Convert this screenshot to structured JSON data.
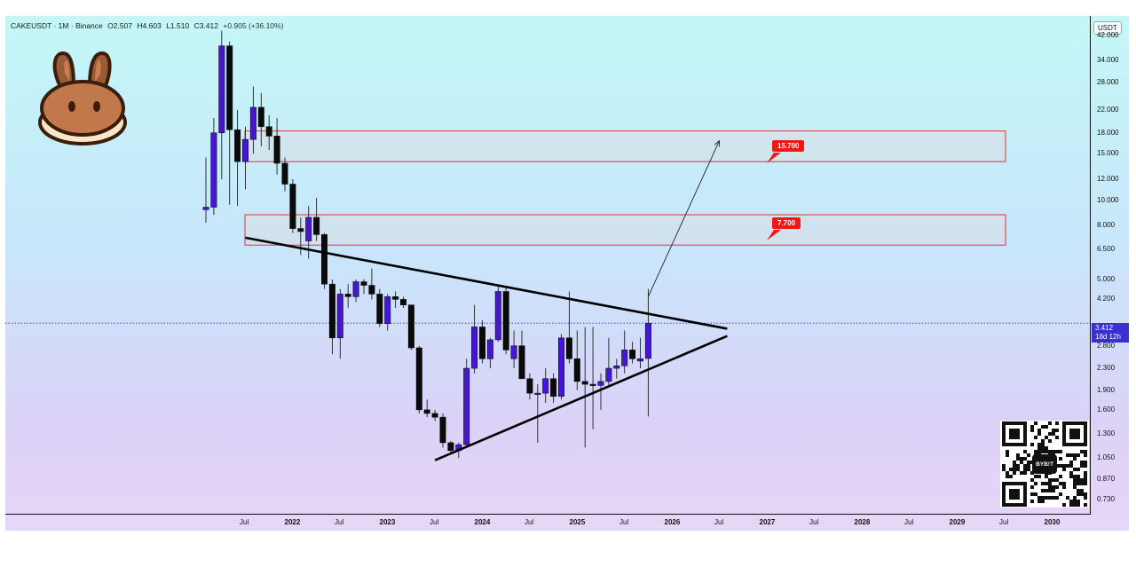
{
  "header": {
    "symbol": "CAKEUSDT · 1M · Binance",
    "open": "O2.507",
    "high": "H4.603",
    "low": "L1.510",
    "close": "C3.412",
    "change": "+0.905 (+36.10%)"
  },
  "unit": "USDT",
  "current_price": {
    "value": "3.412",
    "countdown": "18d 12h"
  },
  "callouts": {
    "upper": "15.700",
    "lower": "7.700"
  },
  "qr_label": "BYB!T",
  "colors": {
    "bull": "#4616d2",
    "bear": "#0a0a0a",
    "zone_border": "#e0313a",
    "zone_fill": "#d9dfe5",
    "callout": "#f41515",
    "price_tag": "#3a2fd2"
  },
  "chart_data": {
    "type": "candlestick",
    "y_scale": "log",
    "ylim": [
      0.65,
      50
    ],
    "y_ticks": [
      "42.000",
      "34.000",
      "28.000",
      "22.000",
      "18.000",
      "15.000",
      "12.000",
      "10.000",
      "8.000",
      "6.500",
      "5.000",
      "4.200",
      "2.800",
      "2.300",
      "1.900",
      "1.600",
      "1.300",
      "1.050",
      "0.870",
      "0.730"
    ],
    "x_ticks": [
      "Jul",
      "2022",
      "Jul",
      "2023",
      "Jul",
      "2024",
      "Jul",
      "2025",
      "Jul",
      "2026",
      "Jul",
      "2027",
      "Jul",
      "2028",
      "Jul",
      "2029",
      "Jul",
      "2030"
    ],
    "candles": [
      {
        "date": "2021-02",
        "o": 9.2,
        "h": 14.5,
        "l": 8.2,
        "c": 9.4
      },
      {
        "date": "2021-03",
        "o": 9.4,
        "h": 20.5,
        "l": 8.8,
        "c": 18.0
      },
      {
        "date": "2021-04",
        "o": 18.0,
        "h": 44.0,
        "l": 12.0,
        "c": 38.5
      },
      {
        "date": "2021-05",
        "o": 38.5,
        "h": 40.0,
        "l": 9.6,
        "c": 18.5
      },
      {
        "date": "2021-06",
        "o": 18.5,
        "h": 22.0,
        "l": 9.5,
        "c": 14.0
      },
      {
        "date": "2021-07",
        "o": 14.0,
        "h": 19.0,
        "l": 11.0,
        "c": 17.0
      },
      {
        "date": "2021-08",
        "o": 17.0,
        "h": 27.0,
        "l": 15.0,
        "c": 22.5
      },
      {
        "date": "2021-09",
        "o": 22.5,
        "h": 25.5,
        "l": 16.0,
        "c": 19.0
      },
      {
        "date": "2021-10",
        "o": 19.0,
        "h": 21.0,
        "l": 15.5,
        "c": 17.5
      },
      {
        "date": "2021-11",
        "o": 17.5,
        "h": 20.5,
        "l": 12.5,
        "c": 13.8
      },
      {
        "date": "2021-12",
        "o": 13.8,
        "h": 14.5,
        "l": 10.8,
        "c": 11.5
      },
      {
        "date": "2021-12b",
        "o": 11.5,
        "h": 12.0,
        "l": 7.5,
        "c": 7.8
      },
      {
        "date": "2022-01",
        "o": 7.8,
        "h": 8.6,
        "l": 6.2,
        "c": 7.6
      },
      {
        "date": "2022-02",
        "o": 7.0,
        "h": 9.5,
        "l": 6.0,
        "c": 8.6
      },
      {
        "date": "2022-03",
        "o": 8.6,
        "h": 10.2,
        "l": 7.0,
        "c": 7.4
      },
      {
        "date": "2022-04",
        "o": 7.4,
        "h": 7.5,
        "l": 4.6,
        "c": 4.8
      },
      {
        "date": "2022-05",
        "o": 4.8,
        "h": 5.0,
        "l": 2.6,
        "c": 3.0
      },
      {
        "date": "2022-06",
        "o": 3.0,
        "h": 4.6,
        "l": 2.5,
        "c": 4.4
      },
      {
        "date": "2022-07",
        "o": 4.4,
        "h": 4.8,
        "l": 3.9,
        "c": 4.3
      },
      {
        "date": "2022-08",
        "o": 4.3,
        "h": 5.0,
        "l": 4.1,
        "c": 4.9
      },
      {
        "date": "2022-09",
        "o": 4.9,
        "h": 5.0,
        "l": 4.4,
        "c": 4.75
      },
      {
        "date": "2022-10",
        "o": 4.75,
        "h": 5.5,
        "l": 4.2,
        "c": 4.4
      },
      {
        "date": "2022-11",
        "o": 4.4,
        "h": 4.6,
        "l": 3.3,
        "c": 3.4
      },
      {
        "date": "2022-12",
        "o": 3.4,
        "h": 4.4,
        "l": 3.2,
        "c": 4.3
      },
      {
        "date": "2023-01",
        "o": 4.3,
        "h": 4.5,
        "l": 3.9,
        "c": 4.2
      },
      {
        "date": "2023-02",
        "o": 4.2,
        "h": 4.3,
        "l": 3.9,
        "c": 4.0
      },
      {
        "date": "2023-03",
        "o": 4.0,
        "h": 4.0,
        "l": 2.7,
        "c": 2.75
      },
      {
        "date": "2023-04",
        "o": 2.75,
        "h": 2.8,
        "l": 1.55,
        "c": 1.6
      },
      {
        "date": "2023-05",
        "o": 1.6,
        "h": 1.75,
        "l": 1.5,
        "c": 1.55
      },
      {
        "date": "2023-06",
        "o": 1.55,
        "h": 1.6,
        "l": 1.45,
        "c": 1.5
      },
      {
        "date": "2023-07",
        "o": 1.5,
        "h": 1.55,
        "l": 1.15,
        "c": 1.2
      },
      {
        "date": "2023-08",
        "o": 1.2,
        "h": 1.22,
        "l": 1.1,
        "c": 1.12
      },
      {
        "date": "2023-09",
        "o": 1.12,
        "h": 1.2,
        "l": 1.05,
        "c": 1.18
      },
      {
        "date": "2023-10",
        "o": 1.18,
        "h": 2.5,
        "l": 1.16,
        "c": 2.3
      },
      {
        "date": "2023-11",
        "o": 2.3,
        "h": 4.0,
        "l": 2.2,
        "c": 3.3
      },
      {
        "date": "2023-12",
        "o": 3.3,
        "h": 3.5,
        "l": 2.4,
        "c": 2.5
      },
      {
        "date": "2024-01",
        "o": 2.5,
        "h": 3.0,
        "l": 2.3,
        "c": 2.95
      },
      {
        "date": "2024-02",
        "o": 2.95,
        "h": 4.8,
        "l": 2.9,
        "c": 4.5
      },
      {
        "date": "2024-03",
        "o": 4.5,
        "h": 4.7,
        "l": 2.6,
        "c": 2.7
      },
      {
        "date": "2024-04",
        "o": 2.5,
        "h": 3.2,
        "l": 2.3,
        "c": 2.8
      },
      {
        "date": "2024-05",
        "o": 2.8,
        "h": 3.2,
        "l": 2.1,
        "c": 2.1
      },
      {
        "date": "2024-06",
        "o": 2.1,
        "h": 2.2,
        "l": 1.75,
        "c": 1.85
      },
      {
        "date": "2024-07",
        "o": 1.85,
        "h": 2.0,
        "l": 1.2,
        "c": 1.85
      },
      {
        "date": "2024-08",
        "o": 1.85,
        "h": 2.3,
        "l": 1.7,
        "c": 2.1
      },
      {
        "date": "2024-09",
        "o": 2.1,
        "h": 2.2,
        "l": 1.7,
        "c": 1.8
      },
      {
        "date": "2024-10",
        "o": 1.8,
        "h": 3.1,
        "l": 1.75,
        "c": 3.0
      },
      {
        "date": "2024-11",
        "o": 3.0,
        "h": 4.5,
        "l": 2.4,
        "c": 2.5
      },
      {
        "date": "2024-12",
        "o": 2.5,
        "h": 3.2,
        "l": 1.9,
        "c": 2.05
      },
      {
        "date": "2025-01",
        "o": 2.05,
        "h": 3.3,
        "l": 1.15,
        "c": 2.0
      },
      {
        "date": "2025-02",
        "o": 2.0,
        "h": 3.3,
        "l": 1.35,
        "c": 1.98
      },
      {
        "date": "2025-03",
        "o": 1.98,
        "h": 2.2,
        "l": 1.6,
        "c": 2.05
      },
      {
        "date": "2025-04",
        "o": 2.05,
        "h": 3.0,
        "l": 1.95,
        "c": 2.3
      },
      {
        "date": "2025-05",
        "o": 2.3,
        "h": 2.5,
        "l": 2.1,
        "c": 2.35
      },
      {
        "date": "2025-06",
        "o": 2.35,
        "h": 3.2,
        "l": 2.2,
        "c": 2.7
      },
      {
        "date": "2025-07",
        "o": 2.7,
        "h": 2.9,
        "l": 2.4,
        "c": 2.5
      },
      {
        "date": "2025-08",
        "o": 2.45,
        "h": 3.0,
        "l": 2.3,
        "c": 2.5
      },
      {
        "date": "2025-09",
        "o": 2.507,
        "h": 4.603,
        "l": 1.51,
        "c": 3.412
      }
    ],
    "zones": [
      {
        "low": 14.0,
        "high": 18.3
      },
      {
        "low": 6.75,
        "high": 8.8
      }
    ],
    "trendlines": [
      {
        "from": [
          "2021-07",
          7.2
        ],
        "to": [
          "2026-07",
          3.25
        ]
      },
      {
        "from": [
          "2023-06",
          1.03
        ],
        "to": [
          "2026-07",
          3.05
        ]
      }
    ],
    "projection": {
      "from": [
        "2025-09",
        4.3
      ],
      "to": [
        "2026-06",
        16.8
      ]
    }
  }
}
